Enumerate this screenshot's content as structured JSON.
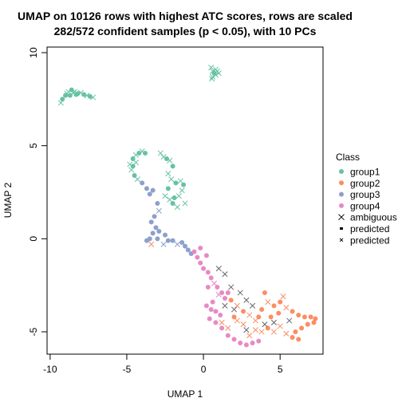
{
  "chart_data": {
    "type": "scatter",
    "title_line1": "UMAP on 10126 rows with highest ATC scores, rows are scaled",
    "title_line2": "282/572 confident samples (p < 0.05), with 10 PCs",
    "xlabel": "UMAP 1",
    "ylabel": "UMAP 2",
    "xlim": [
      -10.2,
      7.8
    ],
    "ylim": [
      -6.2,
      10.3
    ],
    "x_ticks": [
      -10,
      -5,
      0,
      5
    ],
    "y_ticks": [
      -5,
      0,
      5,
      10
    ],
    "legend": {
      "title": "Class",
      "entries": [
        {
          "label": "group1",
          "marker": "dot",
          "color": "#66C2A5"
        },
        {
          "label": "group2",
          "marker": "dot",
          "color": "#FC8D62"
        },
        {
          "label": "group3",
          "marker": "dot",
          "color": "#8DA0CB"
        },
        {
          "label": "group4",
          "marker": "dot",
          "color": "#E78AC3"
        },
        {
          "label": "ambiguous",
          "marker": "cross",
          "color": "#000000"
        },
        {
          "label": "predicted",
          "marker": "dash",
          "color": "#000000"
        },
        {
          "label": "predicted",
          "marker": "smallcross",
          "color": "#000000"
        }
      ]
    },
    "series": [
      {
        "name": "group1",
        "color": "#66C2A5",
        "points": [
          [
            -9.3,
            7.3,
            "x"
          ],
          [
            -9.2,
            7.5,
            "o"
          ],
          [
            -9.0,
            7.7,
            "o"
          ],
          [
            -8.8,
            7.9,
            "x"
          ],
          [
            -8.6,
            8.0,
            "o"
          ],
          [
            -8.4,
            7.9,
            "x"
          ],
          [
            -8.2,
            7.8,
            "o"
          ],
          [
            -8.0,
            7.85,
            "x"
          ],
          [
            -7.8,
            7.75,
            "o"
          ],
          [
            -7.6,
            7.7,
            "x"
          ],
          [
            -7.4,
            7.65,
            "o"
          ],
          [
            -7.2,
            7.6,
            "x"
          ],
          [
            -8.9,
            7.8,
            "x"
          ],
          [
            -8.7,
            7.7,
            "o"
          ],
          [
            -8.5,
            7.85,
            "x"
          ],
          [
            -8.3,
            7.75,
            "o"
          ],
          [
            0.5,
            9.2,
            "x"
          ],
          [
            0.6,
            9.0,
            "x"
          ],
          [
            0.7,
            8.9,
            "o"
          ],
          [
            0.8,
            9.1,
            "x"
          ],
          [
            0.9,
            9.0,
            "x"
          ],
          [
            0.6,
            8.7,
            "x"
          ],
          [
            0.55,
            8.6,
            "x"
          ],
          [
            0.8,
            8.8,
            "x"
          ],
          [
            1.0,
            8.9,
            "x"
          ],
          [
            -4.8,
            4.0,
            "x"
          ],
          [
            -4.6,
            4.3,
            "o"
          ],
          [
            -4.4,
            4.5,
            "x"
          ],
          [
            -4.2,
            4.6,
            "o"
          ],
          [
            -4.0,
            4.7,
            "x"
          ],
          [
            -3.8,
            4.6,
            "o"
          ],
          [
            -4.7,
            3.7,
            "x"
          ],
          [
            -4.5,
            3.4,
            "o"
          ],
          [
            -4.3,
            3.2,
            "x"
          ],
          [
            -4.6,
            3.9,
            "o"
          ],
          [
            -4.4,
            4.1,
            "x"
          ],
          [
            -2.8,
            4.6,
            "x"
          ],
          [
            -2.6,
            4.4,
            "x"
          ],
          [
            -2.4,
            4.3,
            "o"
          ],
          [
            -2.2,
            4.2,
            "x"
          ],
          [
            -2.0,
            3.9,
            "o"
          ],
          [
            -2.3,
            3.5,
            "x"
          ],
          [
            -2.1,
            3.2,
            "x"
          ],
          [
            -1.8,
            3.0,
            "o"
          ],
          [
            -1.5,
            3.1,
            "x"
          ],
          [
            -1.3,
            2.9,
            "o"
          ],
          [
            -1.4,
            2.6,
            "x"
          ],
          [
            -1.6,
            2.3,
            "x"
          ],
          [
            -1.9,
            2.2,
            "o"
          ],
          [
            -2.2,
            2.1,
            "x"
          ],
          [
            -2.5,
            2.3,
            "x"
          ],
          [
            -2.0,
            1.9,
            "o"
          ],
          [
            -1.7,
            1.7,
            "x"
          ],
          [
            -1.2,
            1.9,
            "x"
          ],
          [
            -2.3,
            2.7,
            "o"
          ]
        ]
      },
      {
        "name": "group3",
        "color": "#8DA0CB",
        "points": [
          [
            -4.0,
            3.0,
            "o"
          ],
          [
            -3.7,
            2.7,
            "o"
          ],
          [
            -3.5,
            2.4,
            "o"
          ],
          [
            -3.3,
            2.6,
            "o"
          ],
          [
            -3.0,
            1.9,
            "o"
          ],
          [
            -2.9,
            1.5,
            "x"
          ],
          [
            -3.2,
            1.2,
            "o"
          ],
          [
            -3.4,
            0.9,
            "o"
          ],
          [
            -3.1,
            0.6,
            "o"
          ],
          [
            -3.3,
            0.3,
            "o"
          ],
          [
            -3.5,
            0.0,
            "o"
          ],
          [
            -3.7,
            -0.1,
            "o"
          ],
          [
            -2.9,
            0.4,
            "o"
          ],
          [
            -2.5,
            0.2,
            "o"
          ],
          [
            -2.3,
            -0.1,
            "o"
          ],
          [
            -2.6,
            -0.3,
            "x"
          ],
          [
            -2.0,
            -0.1,
            "o"
          ],
          [
            -1.7,
            -0.3,
            "x"
          ],
          [
            -1.2,
            -0.4,
            "o"
          ],
          [
            -1.0,
            -0.6,
            "o"
          ],
          [
            -0.8,
            -0.8,
            "o"
          ],
          [
            -1.4,
            -0.2,
            "o"
          ],
          [
            -3.0,
            0.0,
            "o"
          ]
        ]
      },
      {
        "name": "group2",
        "color": "#FC8D62",
        "points": [
          [
            -3.4,
            -0.3,
            "x"
          ],
          [
            1.8,
            -3.3,
            "o"
          ],
          [
            2.2,
            -3.6,
            "x"
          ],
          [
            2.6,
            -3.9,
            "o"
          ],
          [
            3.0,
            -4.1,
            "x"
          ],
          [
            3.4,
            -4.4,
            "x"
          ],
          [
            3.8,
            -3.8,
            "o"
          ],
          [
            4.2,
            -3.4,
            "x"
          ],
          [
            4.6,
            -3.6,
            "o"
          ],
          [
            5.0,
            -3.4,
            "o"
          ],
          [
            5.4,
            -3.7,
            "x"
          ],
          [
            5.8,
            -3.9,
            "o"
          ],
          [
            6.2,
            -4.1,
            "o"
          ],
          [
            6.6,
            -4.2,
            "o"
          ],
          [
            7.0,
            -4.2,
            "o"
          ],
          [
            7.3,
            -4.3,
            "o"
          ],
          [
            7.2,
            -4.5,
            "o"
          ],
          [
            6.8,
            -4.6,
            "o"
          ],
          [
            6.4,
            -4.8,
            "o"
          ],
          [
            6.0,
            -5.0,
            "o"
          ],
          [
            5.8,
            -5.3,
            "o"
          ],
          [
            6.2,
            -5.4,
            "o"
          ],
          [
            5.4,
            -5.1,
            "x"
          ],
          [
            5.0,
            -4.7,
            "x"
          ],
          [
            4.6,
            -5.0,
            "x"
          ],
          [
            4.2,
            -4.8,
            "o"
          ],
          [
            3.8,
            -5.0,
            "x"
          ],
          [
            3.4,
            -4.9,
            "x"
          ],
          [
            3.0,
            -5.2,
            "x"
          ],
          [
            2.6,
            -4.6,
            "x"
          ],
          [
            2.2,
            -4.4,
            "x"
          ],
          [
            1.6,
            -4.8,
            "x"
          ],
          [
            1.2,
            -4.5,
            "x"
          ],
          [
            2.0,
            -4.2,
            "o"
          ],
          [
            4.4,
            -4.2,
            "o"
          ],
          [
            4.9,
            -4.0,
            "o"
          ],
          [
            3.6,
            -4.2,
            "o"
          ],
          [
            5.2,
            -3.1,
            "x"
          ],
          [
            4.0,
            -2.9,
            "o"
          ]
        ]
      },
      {
        "name": "group4",
        "color": "#E78AC3",
        "points": [
          [
            -0.6,
            -0.7,
            "o"
          ],
          [
            -0.4,
            -1.0,
            "o"
          ],
          [
            -0.2,
            -1.3,
            "o"
          ],
          [
            0.0,
            -1.6,
            "o"
          ],
          [
            0.3,
            -1.8,
            "o"
          ],
          [
            0.5,
            -2.1,
            "o"
          ],
          [
            0.7,
            -2.4,
            "x"
          ],
          [
            0.9,
            -2.6,
            "o"
          ],
          [
            1.2,
            -2.9,
            "o"
          ],
          [
            1.4,
            -3.2,
            "o"
          ],
          [
            0.2,
            -3.6,
            "o"
          ],
          [
            0.5,
            -3.8,
            "o"
          ],
          [
            0.8,
            -3.9,
            "o"
          ],
          [
            1.1,
            -4.1,
            "o"
          ],
          [
            0.4,
            -4.3,
            "o"
          ],
          [
            0.8,
            -4.5,
            "o"
          ],
          [
            1.2,
            -4.8,
            "o"
          ],
          [
            1.6,
            -5.2,
            "o"
          ],
          [
            2.0,
            -5.4,
            "o"
          ],
          [
            2.4,
            -5.6,
            "o"
          ],
          [
            2.8,
            -5.7,
            "o"
          ],
          [
            3.2,
            -5.6,
            "o"
          ],
          [
            3.6,
            -5.5,
            "o"
          ],
          [
            0.6,
            -3.4,
            "o"
          ],
          [
            1.0,
            -3.0,
            "x"
          ],
          [
            -0.2,
            -0.5,
            "o"
          ],
          [
            0.2,
            -0.9,
            "o"
          ],
          [
            1.6,
            -2.9,
            "o"
          ],
          [
            0.3,
            -2.6,
            "o"
          ]
        ]
      },
      {
        "name": "ambiguous",
        "color": "#666666",
        "points": [
          [
            1.0,
            -1.6,
            "x"
          ],
          [
            1.4,
            -1.9,
            "x"
          ],
          [
            1.8,
            -2.6,
            "x"
          ],
          [
            2.4,
            -2.9,
            "x"
          ],
          [
            2.8,
            -3.3,
            "x"
          ],
          [
            4.6,
            -4.5,
            "x"
          ],
          [
            3.2,
            -3.6,
            "x"
          ],
          [
            2.0,
            -3.8,
            "x"
          ],
          [
            1.4,
            -3.6,
            "x"
          ],
          [
            5.6,
            -4.4,
            "x"
          ],
          [
            4.0,
            -4.6,
            "x"
          ],
          [
            2.8,
            -4.9,
            "x"
          ]
        ]
      }
    ]
  }
}
